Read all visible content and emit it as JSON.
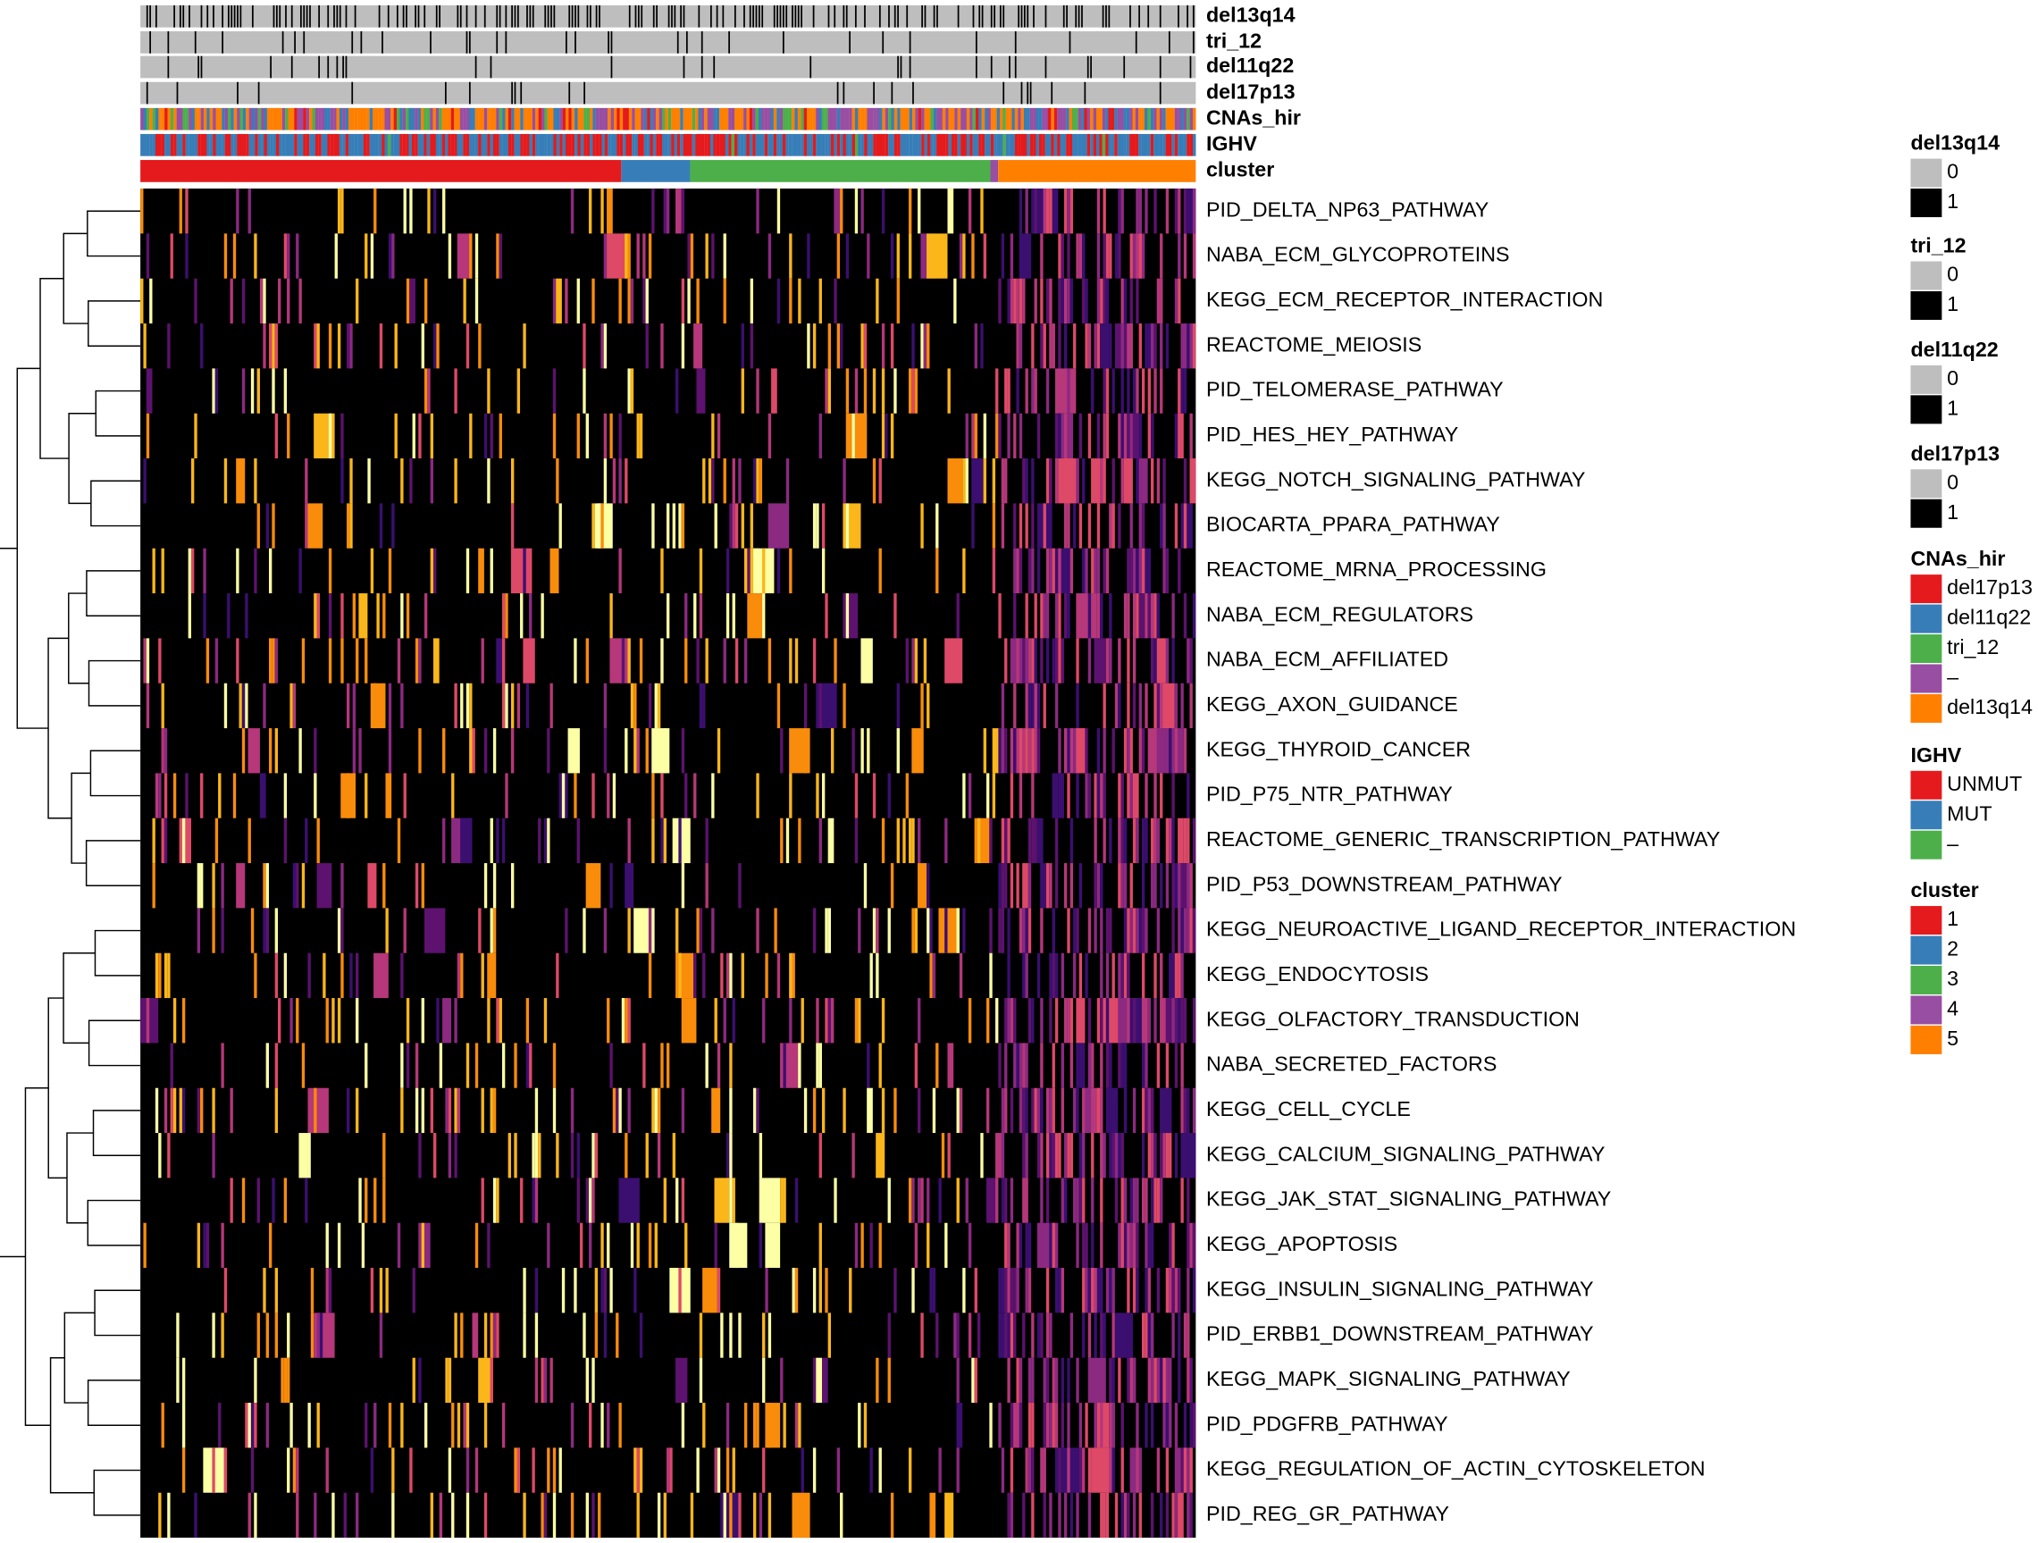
{
  "chart_data": {
    "type": "heatmap",
    "tracks": [
      "del13q14",
      "tri_12",
      "del11q22",
      "del17p13",
      "CNAs_hir",
      "IGHV",
      "cluster"
    ],
    "rows": [
      "PID_DELTA_NP63_PATHWAY",
      "NABA_ECM_GLYCOPROTEINS",
      "KEGG_ECM_RECEPTOR_INTERACTION",
      "REACTOME_MEIOSIS",
      "PID_TELOMERASE_PATHWAY",
      "PID_HES_HEY_PATHWAY",
      "KEGG_NOTCH_SIGNALING_PATHWAY",
      "BIOCARTA_PPARA_PATHWAY",
      "REACTOME_MRNA_PROCESSING",
      "NABA_ECM_REGULATORS",
      "NABA_ECM_AFFILIATED",
      "KEGG_AXON_GUIDANCE",
      "KEGG_THYROID_CANCER",
      "PID_P75_NTR_PATHWAY",
      "REACTOME_GENERIC_TRANSCRIPTION_PATHWAY",
      "PID_P53_DOWNSTREAM_PATHWAY",
      "KEGG_NEUROACTIVE_LIGAND_RECEPTOR_INTERACTION",
      "KEGG_ENDOCYTOSIS",
      "KEGG_OLFACTORY_TRANSDUCTION",
      "NABA_SECRETED_FACTORS",
      "KEGG_CELL_CYCLE",
      "KEGG_CALCIUM_SIGNALING_PATHWAY",
      "KEGG_JAK_STAT_SIGNALING_PATHWAY",
      "KEGG_APOPTOSIS",
      "KEGG_INSULIN_SIGNALING_PATHWAY",
      "PID_ERBB1_DOWNSTREAM_PATHWAY",
      "KEGG_MAPK_SIGNALING_PATHWAY",
      "PID_PDGFRB_PATHWAY",
      "KEGG_REGULATION_OF_ACTIN_CYTOSKELETON",
      "PID_REG_GR_PATHWAY"
    ],
    "legends": [
      {
        "title": "del13q14",
        "items": [
          {
            "label": "0",
            "color": "#bebebe"
          },
          {
            "label": "1",
            "color": "#000000"
          }
        ]
      },
      {
        "title": "tri_12",
        "items": [
          {
            "label": "0",
            "color": "#bebebe"
          },
          {
            "label": "1",
            "color": "#000000"
          }
        ]
      },
      {
        "title": "del11q22",
        "items": [
          {
            "label": "0",
            "color": "#bebebe"
          },
          {
            "label": "1",
            "color": "#000000"
          }
        ]
      },
      {
        "title": "del17p13",
        "items": [
          {
            "label": "0",
            "color": "#bebebe"
          },
          {
            "label": "1",
            "color": "#000000"
          }
        ]
      },
      {
        "title": "CNAs_hir",
        "items": [
          {
            "label": "del17p13",
            "color": "#e41a1c"
          },
          {
            "label": "del11q22",
            "color": "#377eb8"
          },
          {
            "label": "tri_12",
            "color": "#4daf4a"
          },
          {
            "label": "–",
            "color": "#984ea3"
          },
          {
            "label": "del13q14",
            "color": "#ff7f00"
          }
        ]
      },
      {
        "title": "IGHV",
        "items": [
          {
            "label": "UNMUT",
            "color": "#e41a1c"
          },
          {
            "label": "MUT",
            "color": "#377eb8"
          },
          {
            "label": "–",
            "color": "#4daf4a"
          }
        ]
      },
      {
        "title": "cluster",
        "items": [
          {
            "label": "1",
            "color": "#e41a1c"
          },
          {
            "label": "2",
            "color": "#377eb8"
          },
          {
            "label": "3",
            "color": "#4daf4a"
          },
          {
            "label": "4",
            "color": "#984ea3"
          },
          {
            "label": "5",
            "color": "#ff7f00"
          }
        ]
      }
    ]
  }
}
